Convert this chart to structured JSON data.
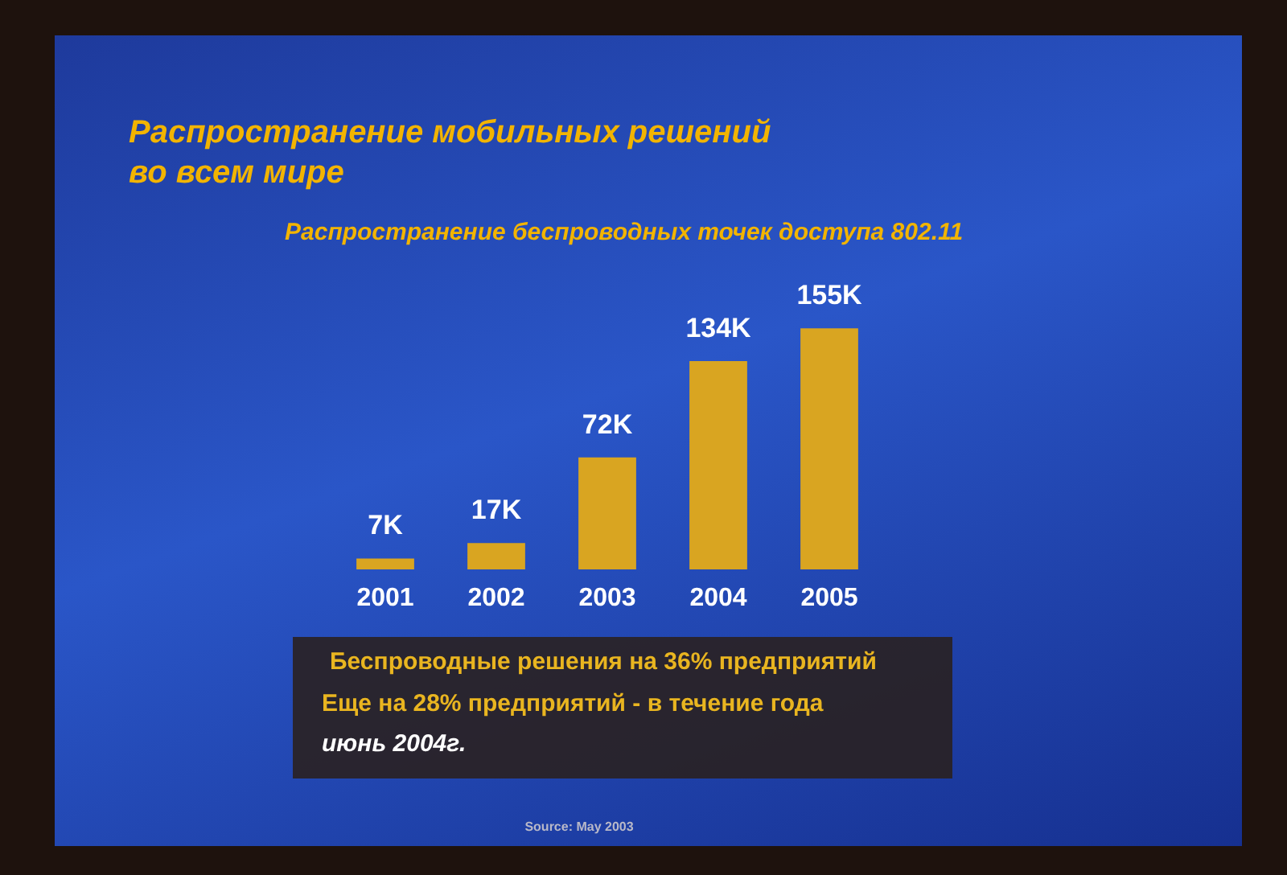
{
  "chart_data": {
    "type": "bar",
    "title": "Распространение мобильных решений во всем мире",
    "subtitle": "Распространение беспроводных точек доступа 802.11",
    "categories": [
      "2001",
      "2002",
      "2003",
      "2004",
      "2005"
    ],
    "values": [
      7,
      17,
      72,
      134,
      155
    ],
    "value_labels": [
      "7K",
      "17K",
      "72K",
      "134K",
      "155K"
    ],
    "color": "#d9a521",
    "annotations": [
      "Беспроводные решения на 36% предприятий",
      "Еще на 28% предприятий - в течение года",
      "июнь 2004г.",
      "Source: May 2003"
    ]
  }
}
